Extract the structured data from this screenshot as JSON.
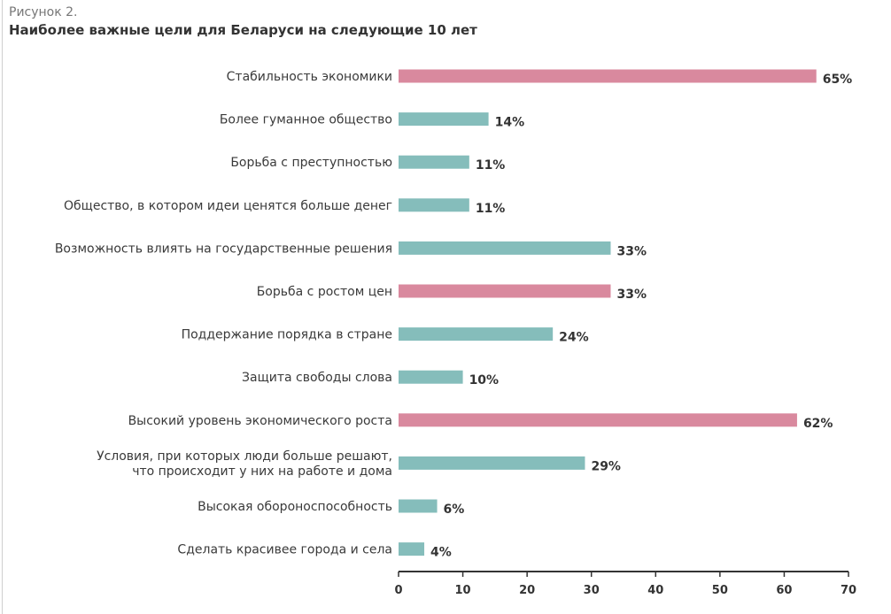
{
  "figure_label": "Рисунок 2.",
  "chart_data": {
    "type": "bar",
    "orientation": "horizontal",
    "title": "Наиболее важные цели для Беларуси на следующие 10 лет",
    "xlim": [
      0,
      70
    ],
    "xticks": [
      0,
      10,
      20,
      30,
      40,
      50,
      60,
      70
    ],
    "grid": false,
    "value_suffix": "%",
    "categories": [
      [
        "Стабильность экономики"
      ],
      [
        "Более гуманное общество"
      ],
      [
        "Борьба с преступностью"
      ],
      [
        "Общество, в котором идеи ценятся больше денег"
      ],
      [
        "Возможность влиять на государственные решения"
      ],
      [
        "Борьба с ростом цен"
      ],
      [
        "Поддержание порядка в стране"
      ],
      [
        "Защита свободы слова"
      ],
      [
        "Высокий уровень экономического роста"
      ],
      [
        "Условия, при которых люди больше решают,",
        "что происходит у них на работе и дома"
      ],
      [
        "Высокая обороноспособность"
      ],
      [
        "Сделать красивее города и села"
      ]
    ],
    "values": [
      65,
      14,
      11,
      11,
      33,
      33,
      24,
      10,
      62,
      29,
      6,
      4
    ],
    "highlighted": [
      true,
      false,
      false,
      false,
      false,
      true,
      false,
      false,
      true,
      false,
      false,
      false
    ],
    "colors": {
      "highlight": "#d9899e",
      "default": "#85bdbb",
      "axis": "#333333"
    }
  }
}
